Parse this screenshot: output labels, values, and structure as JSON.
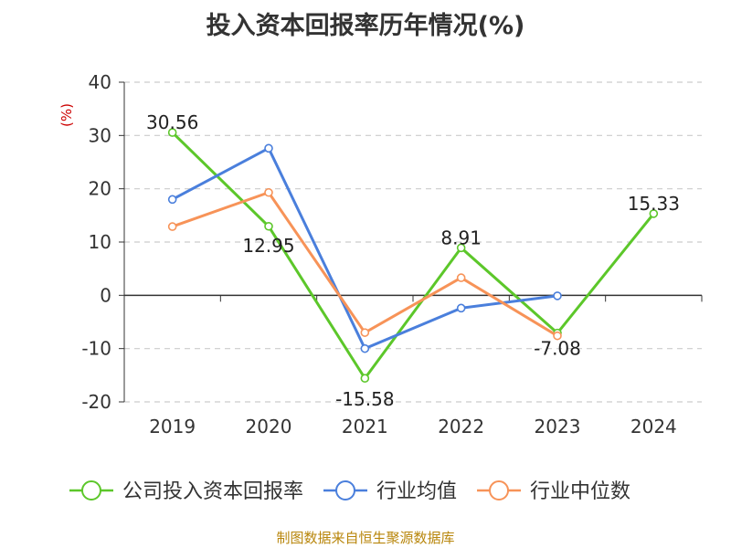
{
  "title": "投入资本回报率历年情况(%)",
  "source": "制图数据来自恒生聚源数据库",
  "chart_data": {
    "type": "line",
    "title": "投入资本回报率历年情况(%)",
    "ylabel": "(%)",
    "xlabel": "",
    "categories": [
      "2019",
      "2020",
      "2021",
      "2022",
      "2023",
      "2024"
    ],
    "ylim": [
      -20,
      40
    ],
    "yticks": [
      -20,
      -10,
      0,
      10,
      20,
      30,
      40
    ],
    "grid": true,
    "legend_position": "bottom",
    "series": [
      {
        "name": "公司投入资本回报率",
        "color": "#5cc72a",
        "values": [
          30.56,
          12.95,
          -15.58,
          8.91,
          -7.08,
          15.33
        ],
        "labels": [
          "30.56",
          "12.95",
          "-15.58",
          "8.91",
          "-7.08",
          "15.33"
        ]
      },
      {
        "name": "行业均值",
        "color": "#4a7fdc",
        "values": [
          18.0,
          27.6,
          -10.0,
          -2.4,
          -0.1,
          null
        ]
      },
      {
        "name": "行业中位数",
        "color": "#f79358",
        "values": [
          12.9,
          19.3,
          -7.0,
          3.3,
          -7.6,
          null
        ]
      }
    ]
  }
}
